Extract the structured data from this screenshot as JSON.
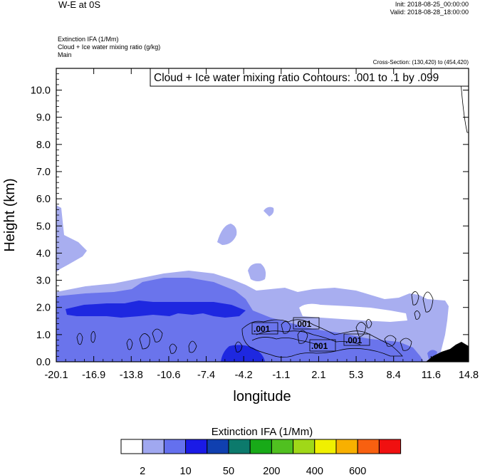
{
  "header": {
    "title": "W-E at 0S",
    "init": "Init: 2018-08-25_00:00:00",
    "valid": "Valid: 2018-08-28_18:00:00",
    "fields": [
      "Extinction IFA   (1/Mm)",
      "Cloud + Ice water mixing ratio   (g/kg)",
      "Main"
    ],
    "cross_section": "Cross-Section: (130,420) to (454,420)"
  },
  "chart_data": {
    "type": "area",
    "title": "",
    "xlabel": "longitude",
    "ylabel": "Height (km)",
    "x_ticks": [
      "-20.1",
      "-16.9",
      "-13.8",
      "-10.6",
      "-7.4",
      "-4.2",
      "-1.1",
      "2.1",
      "5.3",
      "8.4",
      "11.6",
      "14.8"
    ],
    "y_ticks": [
      "0.0",
      "1.0",
      "2.0",
      "3.0",
      "4.0",
      "5.0",
      "6.0",
      "7.0",
      "8.0",
      "9.0",
      "10.0"
    ],
    "xlim": [
      -20.1,
      14.8
    ],
    "ylim": [
      0.0,
      10.8
    ],
    "contour_info": "Cloud + Ice water mixing ratio Contours: .001 to .1 by .099",
    "contour_labels": [
      ".001",
      ".001",
      ".001",
      ".001"
    ],
    "colorbar": {
      "title": "Extinction IFA  (1/Mm)",
      "colors": [
        "#ffffff",
        "#a0a8f0",
        "#6470ee",
        "#1a1ae6",
        "#1040b0",
        "#0c7a6c",
        "#18aa18",
        "#50c020",
        "#a0d818",
        "#f0f000",
        "#f8b000",
        "#f86010",
        "#f01010"
      ],
      "tick_labels": [
        "2",
        "10",
        "50",
        "200",
        "400",
        "600"
      ]
    }
  }
}
